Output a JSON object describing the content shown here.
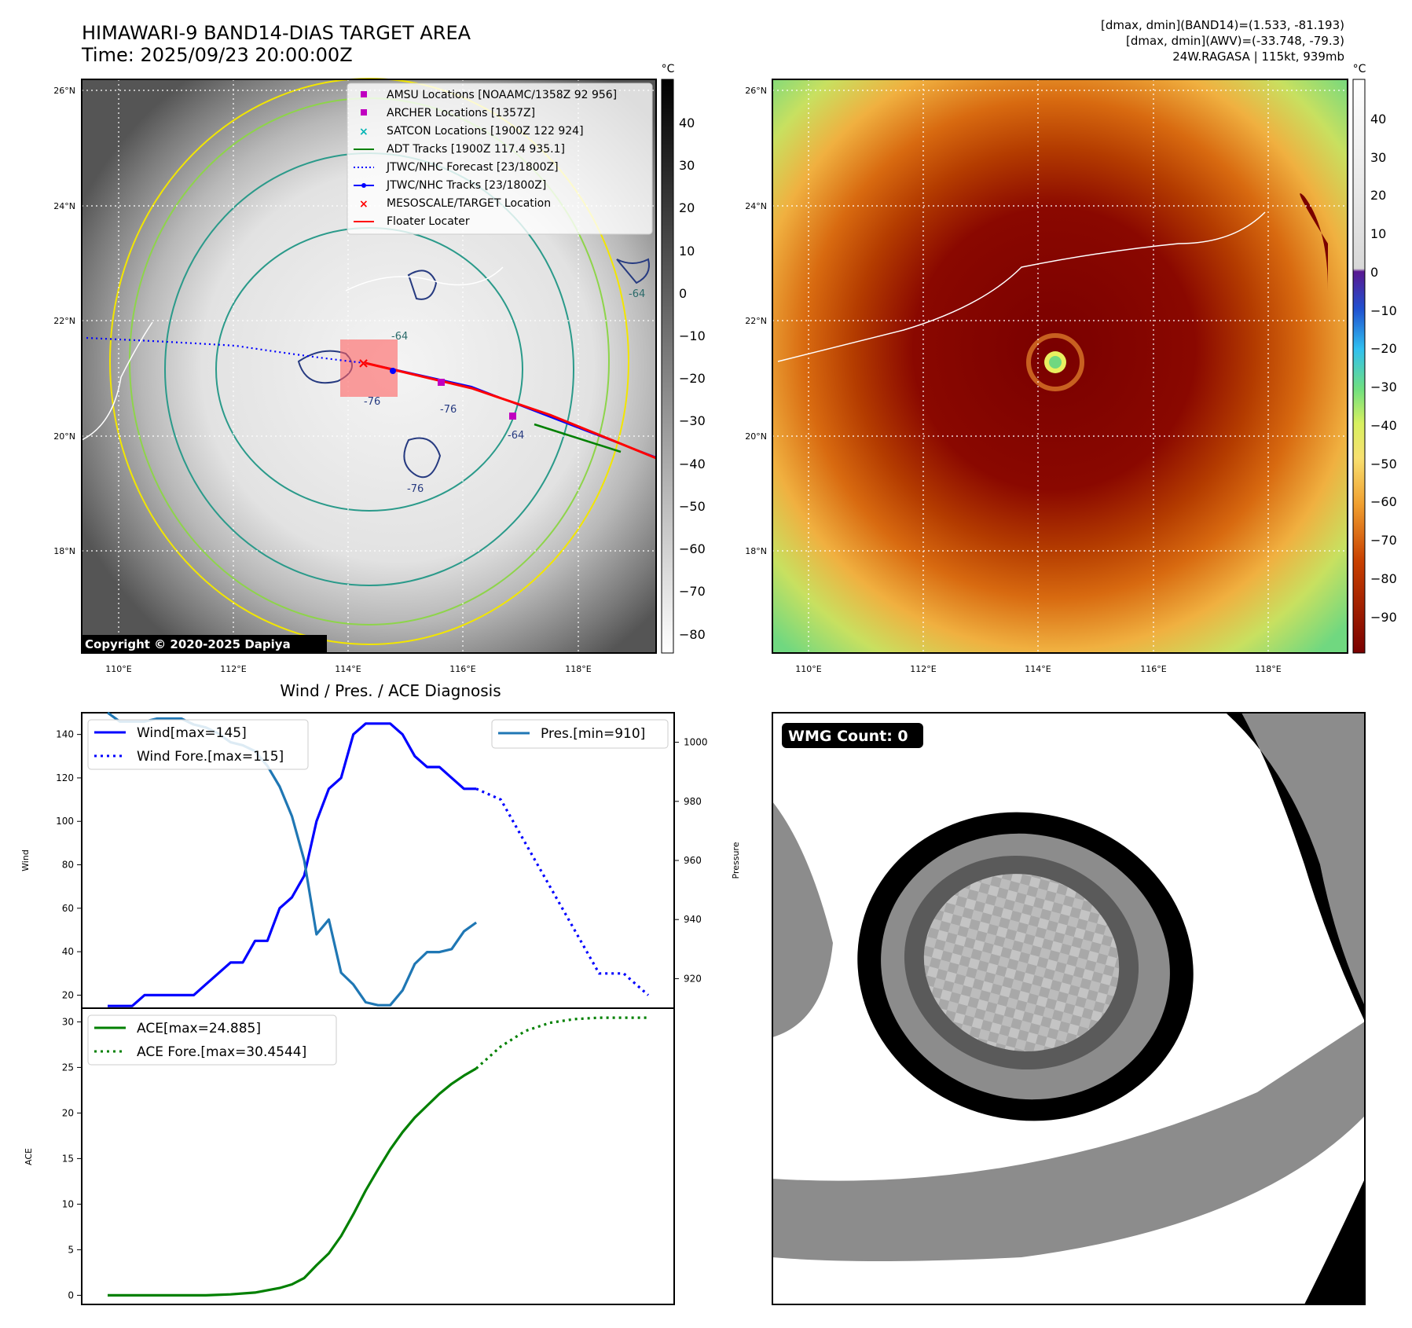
{
  "header": {
    "title_line1": "HIMAWARI-9 BAND14-DIAS TARGET AREA",
    "title_line2": "Time: 2025/09/23 20:00:00Z",
    "info_line1": "[dmax, dmin](BAND14)=(1.533, -81.193)",
    "info_line2": "[dmax, dmin](AWV)=(-33.748, -79.3)",
    "info_line3": "24W.RAGASA | 115kt, 939mb"
  },
  "map_left": {
    "lat_labels": [
      "26°N",
      "24°N",
      "22°N",
      "20°N",
      "18°N"
    ],
    "lon_labels": [
      "110°E",
      "112°E",
      "114°E",
      "116°E",
      "118°E"
    ],
    "copyright": "Copyright © 2020-2025 Dapiya",
    "contour_labels": [
      "-64",
      "-76",
      "-64",
      "-76",
      "-76",
      "-64"
    ],
    "colorbar": {
      "unit": "°C",
      "ticks": [
        "40",
        "30",
        "20",
        "10",
        "0",
        "−10",
        "−20",
        "−30",
        "−40",
        "−50",
        "−60",
        "−70",
        "−80"
      ]
    },
    "legend": [
      {
        "label": "AMSU Locations [NOAAMC/1358Z 92 956]",
        "color": "#c000c0",
        "marker": "square"
      },
      {
        "label": "ARCHER Locations [1357Z]",
        "color": "#c000c0",
        "marker": "square"
      },
      {
        "label": "SATCON Locations [1900Z 122 924]",
        "color": "#00b4b4",
        "marker": "x"
      },
      {
        "label": "ADT Tracks [1900Z 117.4 935.1]",
        "color": "#008000",
        "marker": "line"
      },
      {
        "label": "JTWC/NHC Forecast [23/1800Z]",
        "color": "#0000ff",
        "marker": "dotted"
      },
      {
        "label": "JTWC/NHC Tracks [23/1800Z]",
        "color": "#0000ff",
        "marker": "line-dot"
      },
      {
        "label": "MESOSCALE/TARGET Location",
        "color": "#ff0000",
        "marker": "x"
      },
      {
        "label": "Floater Locater",
        "color": "#ff0000",
        "marker": "line"
      }
    ]
  },
  "map_right": {
    "lat_labels": [
      "26°N",
      "24°N",
      "22°N",
      "20°N",
      "18°N"
    ],
    "lon_labels": [
      "110°E",
      "112°E",
      "114°E",
      "116°E",
      "118°E"
    ],
    "colorbar": {
      "unit": "°C",
      "ticks": [
        "40",
        "30",
        "20",
        "10",
        "0",
        "−10",
        "−20",
        "−30",
        "−40",
        "−50",
        "−60",
        "−70",
        "−80",
        "−90"
      ]
    }
  },
  "wmg": {
    "label": "WMG Count: 0"
  },
  "chart_data": [
    {
      "type": "line",
      "title": "Wind / Pres. / ACE Diagnosis",
      "ylabel": "Wind",
      "y2label": "Pressure",
      "ylim": [
        14,
        150
      ],
      "y2lim": [
        910,
        1010
      ],
      "yticks": [
        "20",
        "40",
        "60",
        "80",
        "100",
        "120",
        "140"
      ],
      "y2ticks": [
        "920",
        "940",
        "960",
        "980",
        "1000"
      ],
      "legend_left": [
        "Wind[max=145]",
        "Wind Fore.[max=115]"
      ],
      "legend_right": [
        "Pres.[min=910]"
      ],
      "series": [
        {
          "name": "Wind[max=145]",
          "color": "#0000ff",
          "style": "solid",
          "axis": "left",
          "x": [
            0,
            1,
            2,
            3,
            4,
            5,
            6,
            7,
            8,
            9,
            10,
            11,
            12,
            13,
            14,
            15,
            16,
            17,
            18,
            19,
            20,
            21,
            22,
            23,
            24,
            25,
            26,
            27,
            28,
            29,
            30
          ],
          "y": [
            15,
            15,
            15,
            20,
            20,
            20,
            20,
            20,
            25,
            30,
            35,
            35,
            45,
            45,
            60,
            65,
            75,
            100,
            115,
            120,
            140,
            145,
            145,
            145,
            140,
            130,
            125,
            125,
            120,
            115,
            115
          ]
        },
        {
          "name": "Wind Fore.[max=115]",
          "color": "#0000ff",
          "style": "dotted",
          "axis": "left",
          "x": [
            30,
            32,
            34,
            36,
            38,
            40,
            42,
            44
          ],
          "y": [
            115,
            110,
            90,
            70,
            50,
            30,
            30,
            20
          ]
        },
        {
          "name": "Pres.[min=910]",
          "color": "#1f77b4",
          "style": "solid",
          "axis": "right",
          "x": [
            0,
            1,
            2,
            3,
            4,
            5,
            6,
            7,
            8,
            9,
            10,
            11,
            12,
            13,
            14,
            15,
            16,
            17,
            18,
            19,
            20,
            21,
            22,
            23,
            24,
            25,
            26,
            27,
            28,
            29,
            30
          ],
          "y": [
            1010,
            1007,
            1007,
            1007,
            1008,
            1008,
            1008,
            1006,
            1005,
            1003,
            1000,
            999,
            997,
            992,
            985,
            975,
            960,
            935,
            940,
            922,
            918,
            912,
            911,
            911,
            916,
            925,
            929,
            929,
            930,
            936,
            939
          ]
        }
      ]
    },
    {
      "type": "line",
      "ylabel": "ACE",
      "ylim": [
        -1,
        31.5
      ],
      "yticks": [
        "0",
        "5",
        "10",
        "15",
        "20",
        "25",
        "30"
      ],
      "legend": [
        "ACE[max=24.885]",
        "ACE Fore.[max=30.4544]"
      ],
      "series": [
        {
          "name": "ACE[max=24.885]",
          "color": "#008000",
          "style": "solid",
          "x": [
            0,
            2,
            4,
            6,
            8,
            10,
            12,
            14,
            15,
            16,
            17,
            18,
            19,
            20,
            21,
            22,
            23,
            24,
            25,
            26,
            27,
            28,
            29,
            30
          ],
          "y": [
            0,
            0,
            0,
            0,
            0,
            0.1,
            0.3,
            0.8,
            1.2,
            1.9,
            3.3,
            4.6,
            6.5,
            8.9,
            11.5,
            13.8,
            16,
            17.9,
            19.5,
            20.8,
            22.1,
            23.2,
            24.1,
            24.885
          ]
        },
        {
          "name": "ACE Fore.[max=30.4544]",
          "color": "#008000",
          "style": "dotted",
          "x": [
            30,
            32,
            34,
            36,
            38,
            40,
            42,
            44
          ],
          "y": [
            24.885,
            27.3,
            29.0,
            29.9,
            30.3,
            30.4544,
            30.4544,
            30.4544
          ]
        }
      ]
    }
  ]
}
